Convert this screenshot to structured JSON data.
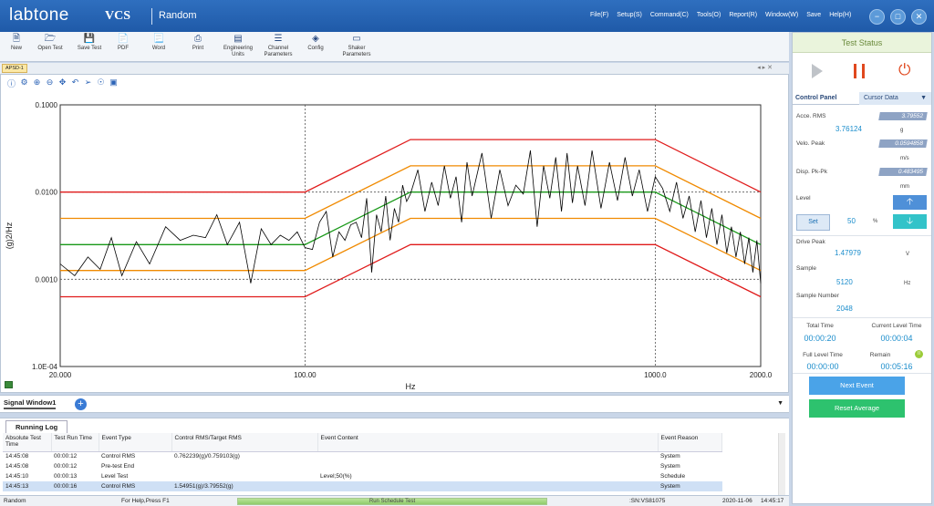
{
  "app": {
    "logo": "labtone",
    "product": "VCS",
    "mode": "Random"
  },
  "menu": [
    "File(F)",
    "Setup(S)",
    "Command(C)",
    "Tools(O)",
    "Report(R)",
    "Window(W)",
    "Save",
    "Help(H)"
  ],
  "toolbar": [
    {
      "label": "New",
      "icon": "new-file-icon"
    },
    {
      "label": "Open Test",
      "icon": "folder-icon"
    },
    {
      "label": "Save Test",
      "icon": "floppy-icon"
    },
    {
      "label": "PDF",
      "icon": "pdf-icon"
    },
    {
      "label": "Word",
      "icon": "word-icon"
    },
    {
      "label": "Print",
      "icon": "printer-icon"
    },
    {
      "label": "Engineering Units",
      "icon": "ruler-icon"
    },
    {
      "label": "Channel Parameters",
      "icon": "sliders-icon"
    },
    {
      "label": "Config",
      "icon": "layers-icon"
    },
    {
      "label": "Shaker Parameters",
      "icon": "monitor-icon"
    }
  ],
  "plot": {
    "tab": "APSD-1"
  },
  "chart_data": {
    "type": "line",
    "xlabel": "Hz",
    "ylabel": "(g)2/Hz",
    "xscale": "log",
    "yscale": "log",
    "xlim": [
      20,
      2000
    ],
    "ylim": [
      0.0001,
      0.1
    ],
    "xticks": [
      "20.000",
      "100.00",
      "1000.0",
      "2000.0"
    ],
    "yticks": [
      "0.1000",
      "0.0100",
      "0.0010",
      "1.0E-04"
    ],
    "grid": true,
    "series": [
      {
        "color": "#e01b1b",
        "x": [
          20,
          100,
          200,
          1000,
          2000
        ],
        "y": [
          0.01,
          0.01,
          0.04,
          0.04,
          0.01
        ]
      },
      {
        "color": "#f08a00",
        "x": [
          20,
          100,
          200,
          1000,
          2000
        ],
        "y": [
          0.005,
          0.005,
          0.02,
          0.02,
          0.005
        ]
      },
      {
        "color": "#199919",
        "x": [
          20,
          100,
          200,
          1000,
          2000
        ],
        "y": [
          0.0025,
          0.0025,
          0.01,
          0.01,
          0.0025
        ]
      },
      {
        "color": "#f08a00",
        "x": [
          20,
          100,
          200,
          1000,
          2000
        ],
        "y": [
          0.00126,
          0.00126,
          0.005,
          0.005,
          0.00126
        ]
      },
      {
        "color": "#e01b1b",
        "x": [
          20,
          100,
          200,
          1000,
          2000
        ],
        "y": [
          0.00063,
          0.00063,
          0.0025,
          0.0025,
          0.00063
        ]
      },
      {
        "color": "#000000",
        "x": [
          20,
          22,
          24,
          26,
          28,
          30,
          33,
          36,
          40,
          44,
          48,
          52,
          56,
          60,
          65,
          70,
          75,
          80,
          85,
          90,
          95,
          100,
          105,
          110,
          115,
          120,
          125,
          130,
          135,
          140,
          145,
          150,
          155,
          160,
          165,
          170,
          175,
          180,
          185,
          190,
          195,
          200,
          210,
          220,
          230,
          240,
          250,
          260,
          270,
          280,
          290,
          300,
          320,
          340,
          360,
          380,
          400,
          420,
          440,
          460,
          480,
          500,
          520,
          540,
          560,
          580,
          600,
          630,
          660,
          700,
          740,
          780,
          820,
          860,
          900,
          950,
          1000,
          1050,
          1100,
          1150,
          1200,
          1250,
          1300,
          1350,
          1400,
          1450,
          1500,
          1550,
          1600,
          1650,
          1700,
          1750,
          1800,
          1850,
          1900,
          1950,
          2000
        ],
        "y": [
          0.0015,
          0.0011,
          0.0018,
          0.0013,
          0.003,
          0.0011,
          0.0027,
          0.0015,
          0.004,
          0.0028,
          0.0032,
          0.003,
          0.0055,
          0.0025,
          0.0045,
          0.0009,
          0.0038,
          0.0025,
          0.0032,
          0.0028,
          0.0035,
          0.0023,
          0.0022,
          0.0045,
          0.006,
          0.0018,
          0.0035,
          0.0028,
          0.0042,
          0.0045,
          0.003,
          0.0085,
          0.0012,
          0.0055,
          0.0035,
          0.009,
          0.0028,
          0.0065,
          0.0045,
          0.012,
          0.0078,
          0.0095,
          0.018,
          0.006,
          0.013,
          0.007,
          0.02,
          0.0085,
          0.015,
          0.0045,
          0.022,
          0.009,
          0.028,
          0.005,
          0.018,
          0.007,
          0.012,
          0.0095,
          0.03,
          0.004,
          0.02,
          0.0085,
          0.025,
          0.006,
          0.028,
          0.0075,
          0.02,
          0.007,
          0.03,
          0.0065,
          0.022,
          0.008,
          0.025,
          0.009,
          0.018,
          0.006,
          0.015,
          0.011,
          0.006,
          0.013,
          0.005,
          0.009,
          0.0035,
          0.008,
          0.003,
          0.0065,
          0.0025,
          0.0055,
          0.002,
          0.004,
          0.0018,
          0.0035,
          0.0015,
          0.003,
          0.0012,
          0.0028,
          0.0009
        ]
      }
    ]
  },
  "signal_window": {
    "tab": "Signal Window1"
  },
  "log": {
    "tab": "Running Log",
    "headers": [
      "Absolute Test Time",
      "Test Run Time",
      "Event Type",
      "Control RMS/Target RMS",
      "Event Content",
      "Event Reason"
    ],
    "rows": [
      [
        "14:45:08",
        "00:00:12",
        "Control RMS",
        "0.762239(g)/0.759103(g)",
        "",
        "System"
      ],
      [
        "14:45:08",
        "00:00:12",
        "Pre-test End",
        "",
        "",
        "System"
      ],
      [
        "14:45:10",
        "00:00:13",
        "Level Test",
        "",
        "Level;50(%)",
        "Schedule"
      ],
      [
        "14:45:13",
        "00:00:16",
        "Control RMS",
        "1.54951(g)/3.79552(g)",
        "",
        "System"
      ]
    ]
  },
  "statusbar": {
    "mode": "Random",
    "help": "For Help,Press F1",
    "progress_label": "Run Schedule Test",
    "sn": ":SN:VS81075",
    "date": "2020-11-06",
    "time": "14:45:17"
  },
  "panel": {
    "title": "Test Status",
    "tab_control": "Control Panel",
    "tab_cursor": "Cursor Data",
    "acc_label": "Acce. RMS",
    "acc_target": "3.79552",
    "acc_value": "3.76124",
    "acc_unit": "g",
    "velo_label": "Velo. Peak",
    "velo_value": "0.0594858",
    "velo_unit": "m/s",
    "disp_label": "Disp. Pk-Pk",
    "disp_value": "0.483495",
    "disp_unit": "mm",
    "level_label": "Level",
    "set_label": "Set",
    "level_value": "50",
    "level_unit": "%",
    "drive_label": "Drive Peak",
    "drive_value": "1.47979",
    "drive_unit": "V",
    "sample_label": "Sample",
    "sample_value": "5120",
    "sample_unit": "Hz",
    "samplenum_label": "Sample Number",
    "samplenum_value": "2048",
    "total_time_label": "Total Time",
    "total_time": "00:00:20",
    "cur_level_label": "Current Level Time",
    "cur_level_time": "00:00:04",
    "full_level_label": "Full Level Time",
    "full_level_time": "00:00:00",
    "remain_label": "Remain",
    "remain_time": "00:05:16",
    "next_event": "Next Event",
    "reset_average": "Reset Average"
  }
}
